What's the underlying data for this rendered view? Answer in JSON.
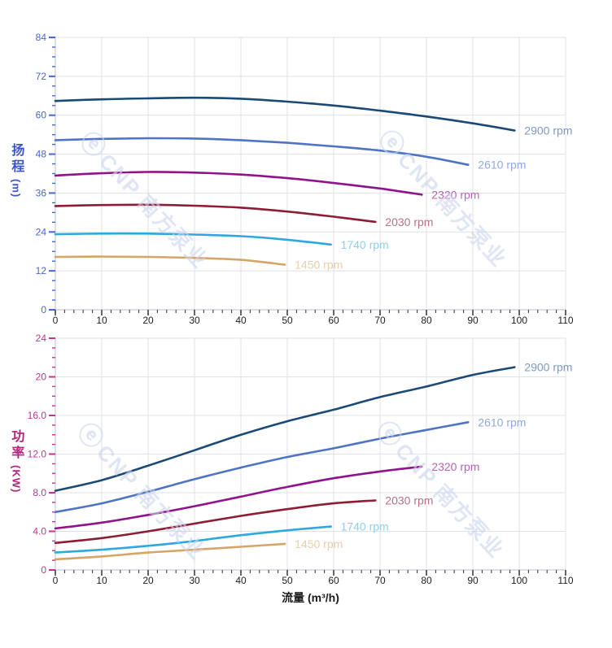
{
  "watermark": {
    "logo_glyph": "ⓔ",
    "text": "CNP 南方泵业",
    "color": "#ccd5ec"
  },
  "x_axis": {
    "title": "流量 (m³/h)",
    "tick_labels": [
      "0",
      "10",
      "20",
      "30",
      "40",
      "50",
      "60",
      "70",
      "80",
      "90",
      "100",
      "110"
    ],
    "min": 0,
    "max": 110,
    "major_step": 10,
    "minor_step": 2,
    "tick_color": "#3f3f3f",
    "label_color": "#1f1f1f"
  },
  "chart_data": [
    {
      "type": "line",
      "id": "head",
      "title": "",
      "ylabel": "扬程 (m)",
      "ylabel_cjk": "扬程",
      "ylabel_unit": "(m)",
      "xlabel": "流量 (m³/h)",
      "xlim": [
        0,
        110
      ],
      "ylim": [
        0,
        84
      ],
      "grid": true,
      "legend_position": "end-of-curve",
      "y_major_step": 12,
      "y_minor_step": 3,
      "y_tick_labels": [
        "84",
        "72",
        "60",
        "48",
        "36",
        "24",
        "12",
        "0"
      ],
      "y_tick_values": [
        84,
        72,
        60,
        48,
        36,
        24,
        12,
        0
      ],
      "axis_color": "#4766d6",
      "title_color": "#3c55cb",
      "series": [
        {
          "name": "2900 rpm",
          "color": "#1a4a75",
          "label_color": "#7e99c0",
          "x": [
            0,
            10,
            20,
            30,
            40,
            50,
            60,
            70,
            80,
            90,
            99
          ],
          "y": [
            64.4,
            64.9,
            65.2,
            65.4,
            65.1,
            64.2,
            63.0,
            61.4,
            59.6,
            57.5,
            55.3
          ]
        },
        {
          "name": "2610 rpm",
          "color": "#4f74c4",
          "label_color": "#92a8dc",
          "x": [
            0,
            10,
            20,
            30,
            40,
            50,
            60,
            70,
            80,
            89
          ],
          "y": [
            52.3,
            52.7,
            52.9,
            52.8,
            52.3,
            51.5,
            50.4,
            49.1,
            47.2,
            44.7
          ]
        },
        {
          "name": "2320 rpm",
          "color": "#91138c",
          "label_color": "#ba62b8",
          "x": [
            0,
            10,
            20,
            30,
            40,
            50,
            60,
            70,
            79
          ],
          "y": [
            41.4,
            42.1,
            42.5,
            42.3,
            41.7,
            40.6,
            39.1,
            37.4,
            35.5
          ]
        },
        {
          "name": "2030 rpm",
          "color": "#8e1c34",
          "label_color": "#b97084",
          "x": [
            0,
            10,
            20,
            30,
            40,
            50,
            60,
            69
          ],
          "y": [
            32.0,
            32.3,
            32.4,
            32.1,
            31.5,
            30.3,
            28.7,
            27.1
          ]
        },
        {
          "name": "1740 rpm",
          "color": "#2fa8e1",
          "label_color": "#8ecff1",
          "x": [
            0,
            10,
            20,
            30,
            40,
            50,
            59.4
          ],
          "y": [
            23.3,
            23.5,
            23.5,
            23.2,
            22.7,
            21.6,
            20.1
          ]
        },
        {
          "name": "1450 rpm",
          "color": "#d6a466",
          "label_color": "#e9cfa8",
          "x": [
            0,
            10,
            20,
            30,
            40,
            49.5
          ],
          "y": [
            16.3,
            16.4,
            16.3,
            16.0,
            15.4,
            13.9
          ]
        }
      ]
    },
    {
      "type": "line",
      "id": "power",
      "title": "",
      "ylabel": "功率 (KW)",
      "ylabel_cjk": "功率",
      "ylabel_unit": "(KW)",
      "xlabel": "流量 (m³/h)",
      "xlim": [
        0,
        110
      ],
      "ylim": [
        0,
        24
      ],
      "grid": true,
      "legend_position": "end-of-curve",
      "y_major_step": 4,
      "y_minor_step": 1,
      "y_tick_labels": [
        "24",
        "20",
        "16.0",
        "12.0",
        "8.0",
        "4.0",
        "0"
      ],
      "y_tick_values": [
        24,
        20,
        16,
        12,
        8,
        4,
        0
      ],
      "axis_color": "#c43390",
      "title_color": "#b5237f",
      "series": [
        {
          "name": "2900 rpm",
          "color": "#1a4a75",
          "label_color": "#7e99c0",
          "x": [
            0,
            10,
            20,
            30,
            40,
            50,
            60,
            70,
            80,
            90,
            99
          ],
          "y": [
            8.2,
            9.3,
            10.8,
            12.4,
            14.0,
            15.4,
            16.6,
            17.9,
            19.0,
            20.2,
            21.0
          ]
        },
        {
          "name": "2610 rpm",
          "color": "#4f74c4",
          "label_color": "#92a8dc",
          "x": [
            0,
            10,
            20,
            30,
            40,
            50,
            60,
            70,
            80,
            89
          ],
          "y": [
            6.0,
            6.9,
            8.1,
            9.4,
            10.6,
            11.7,
            12.6,
            13.6,
            14.5,
            15.3
          ]
        },
        {
          "name": "2320 rpm",
          "color": "#91138c",
          "label_color": "#ba62b8",
          "x": [
            0,
            10,
            20,
            30,
            40,
            50,
            60,
            70,
            79
          ],
          "y": [
            4.3,
            4.9,
            5.7,
            6.6,
            7.6,
            8.6,
            9.5,
            10.2,
            10.7
          ]
        },
        {
          "name": "2030 rpm",
          "color": "#8e1c34",
          "label_color": "#b97084",
          "x": [
            0,
            10,
            20,
            30,
            40,
            50,
            60,
            69
          ],
          "y": [
            2.8,
            3.3,
            4.0,
            4.8,
            5.6,
            6.3,
            6.9,
            7.2
          ]
        },
        {
          "name": "1740 rpm",
          "color": "#2fa8e1",
          "label_color": "#8ecff1",
          "x": [
            0,
            10,
            20,
            30,
            40,
            50,
            59.4
          ],
          "y": [
            1.8,
            2.1,
            2.5,
            3.0,
            3.6,
            4.1,
            4.5
          ]
        },
        {
          "name": "1450 rpm",
          "color": "#d6a466",
          "label_color": "#e9cfa8",
          "x": [
            0,
            10,
            20,
            30,
            40,
            49.5
          ],
          "y": [
            1.1,
            1.4,
            1.8,
            2.1,
            2.4,
            2.7
          ]
        }
      ]
    }
  ]
}
